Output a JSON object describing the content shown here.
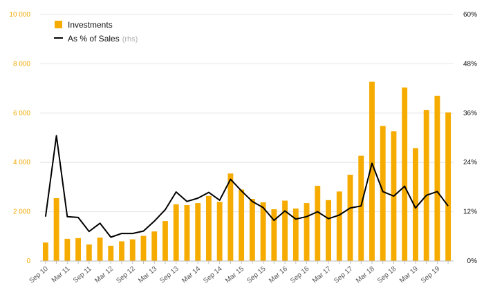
{
  "chart_data": {
    "type": "bar+line",
    "x": [
      "Sep 10",
      "Dec 10",
      "Mar 11",
      "Jun 11",
      "Sep 11",
      "Dec 11",
      "Mar 12",
      "Jun 12",
      "Sep 12",
      "Dec 12",
      "Mar 13",
      "Jun 13",
      "Sep 13",
      "Dec 13",
      "Mar 14",
      "Jun 14",
      "Sep 14",
      "Dec 14",
      "Mar 15",
      "Jun 15",
      "Sep 15",
      "Dec 15",
      "Mar 16",
      "Jun 16",
      "Sep 16",
      "Dec 16",
      "Mar 17",
      "Jun 17",
      "Sep 17",
      "Dec 17",
      "Mar 18",
      "Jun 18",
      "Sep 18",
      "Dec 18",
      "Mar 19",
      "Jun 19",
      "Sep 19",
      "Dec 19"
    ],
    "x_tick_labels": [
      "Sep 10",
      "Mar 11",
      "Sep 11",
      "Mar 12",
      "Sep 12",
      "Mar 13",
      "Sep 13",
      "Mar 14",
      "Sep 14",
      "Mar 15",
      "Sep 15",
      "Mar 16",
      "Sep 16",
      "Mar 17",
      "Sep 17",
      "Mar 18",
      "Sep 18",
      "Mar 19",
      "Sep 19"
    ],
    "series": [
      {
        "name": "Investments",
        "axis": "left",
        "kind": "bar",
        "values": [
          750,
          2550,
          900,
          930,
          670,
          950,
          620,
          800,
          880,
          1020,
          1200,
          1620,
          2300,
          2270,
          2350,
          2640,
          2400,
          3550,
          2900,
          2520,
          2380,
          2100,
          2450,
          2130,
          2350,
          3050,
          2470,
          2820,
          3500,
          4270,
          7270,
          5480,
          5260,
          7040,
          4580,
          6130,
          6700,
          6030
        ]
      },
      {
        "name": "As % of Sales",
        "name_suffix": "(rhs)",
        "axis": "right",
        "kind": "line",
        "values": [
          10.8,
          30.5,
          10.8,
          10.6,
          7.2,
          9.2,
          5.8,
          6.7,
          6.7,
          7.3,
          9.7,
          12.5,
          16.8,
          14.5,
          15.3,
          16.7,
          14.8,
          19.9,
          17.1,
          14.5,
          13.0,
          9.9,
          12.2,
          10.2,
          10.8,
          12.0,
          10.3,
          11.2,
          12.9,
          13.4,
          23.8,
          16.9,
          15.8,
          18.2,
          12.9,
          16.0,
          16.9,
          13.4
        ]
      }
    ],
    "y_left": {
      "min": 0,
      "max": 10000,
      "ticks": [
        0,
        2000,
        4000,
        6000,
        8000,
        10000
      ],
      "tick_labels": [
        "0",
        "2 000",
        "4 000",
        "6 000",
        "8 000",
        "10 000"
      ]
    },
    "y_right": {
      "min": 0,
      "max": 60,
      "ticks": [
        0,
        12,
        24,
        36,
        48,
        60
      ],
      "tick_labels": [
        "0%",
        "12%",
        "24%",
        "36%",
        "48%",
        "60%"
      ]
    },
    "grid": true,
    "legend_position": "top-left"
  },
  "colors": {
    "bar": "#f5ab00",
    "line": "#000000",
    "grid": "#e4e4e4",
    "left_axis_text": "#f0a800",
    "right_axis_text": "#111111"
  }
}
